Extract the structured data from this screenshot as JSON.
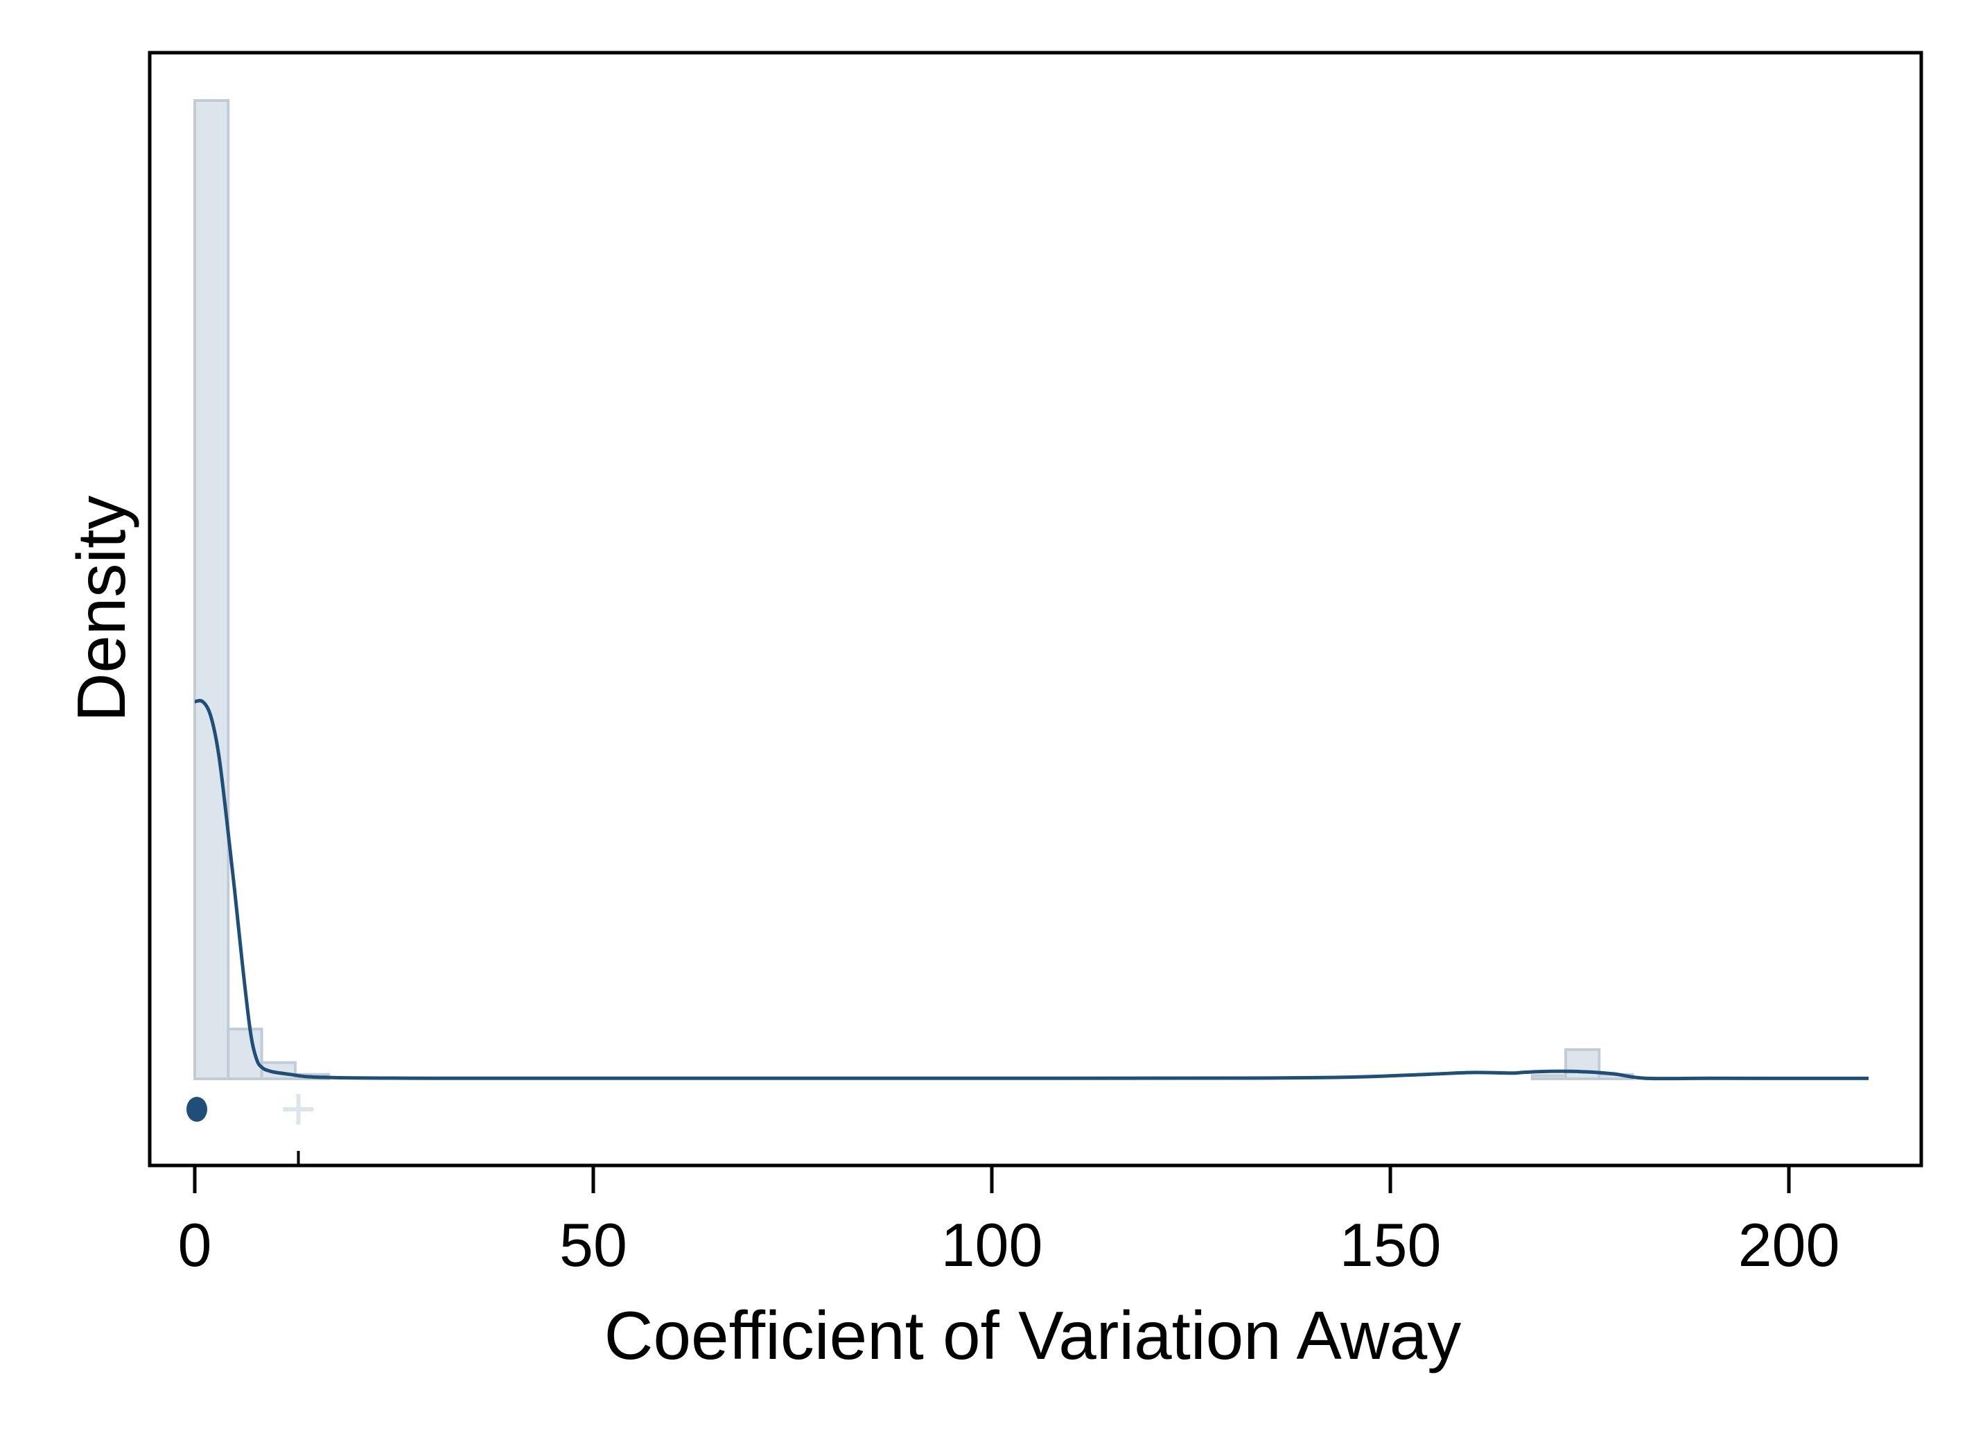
{
  "chart_data": {
    "type": "histogram",
    "title": "",
    "xlabel": "Coefficient of Variation Away",
    "ylabel": "Density",
    "xlim": [
      -6,
      216
    ],
    "ylim": [
      0,
      1
    ],
    "y_scale_note": "y-axis has no tick labels; heights are relative densities",
    "x_ticks": [
      0,
      50,
      100,
      150,
      200
    ],
    "y_ticks": [],
    "grid": false,
    "legend": "none",
    "histogram": {
      "bin_width": 4.2,
      "bins": [
        {
          "x0": 0.0,
          "x1": 4.2,
          "density": 0.905
        },
        {
          "x0": 4.2,
          "x1": 8.4,
          "density": 0.046
        },
        {
          "x0": 8.4,
          "x1": 12.6,
          "density": 0.015
        },
        {
          "x0": 12.6,
          "x1": 16.8,
          "density": 0.004
        },
        {
          "x0": 167.8,
          "x1": 172.0,
          "density": 0.003
        },
        {
          "x0": 172.0,
          "x1": 176.2,
          "density": 0.027
        },
        {
          "x0": 176.2,
          "x1": 180.4,
          "density": 0.004
        }
      ],
      "fill": "#dde5ec",
      "stroke": "#c3ccd6"
    },
    "kde": {
      "color": "#1f4e79",
      "x": [
        0,
        1,
        2,
        3,
        4,
        5,
        6,
        7,
        7.8,
        8.5,
        9,
        10,
        12,
        14,
        17,
        20,
        25,
        30,
        50,
        90,
        130,
        145,
        155,
        160,
        164,
        165.5,
        167,
        170,
        174,
        178,
        182,
        190,
        200,
        210
      ],
      "y": [
        0.344,
        0.344,
        0.331,
        0.296,
        0.237,
        0.172,
        0.103,
        0.042,
        0.017,
        0.01,
        0.008,
        0.006,
        0.004,
        0.002,
        0.0012,
        0.0008,
        0.0006,
        0.0005,
        0.0005,
        0.0005,
        0.0006,
        0.0015,
        0.0042,
        0.0057,
        0.0054,
        0.0052,
        0.006,
        0.0068,
        0.0065,
        0.0045,
        0.0005,
        0.0005,
        0.0004,
        0.0004
      ]
    },
    "rug_markers": [
      {
        "x": 0,
        "symbol": "filled-circle",
        "color": "#1f4e79"
      },
      {
        "x": 13,
        "symbol": "plus",
        "color": "#dde5ec"
      }
    ],
    "rug_tick_x": 13
  }
}
